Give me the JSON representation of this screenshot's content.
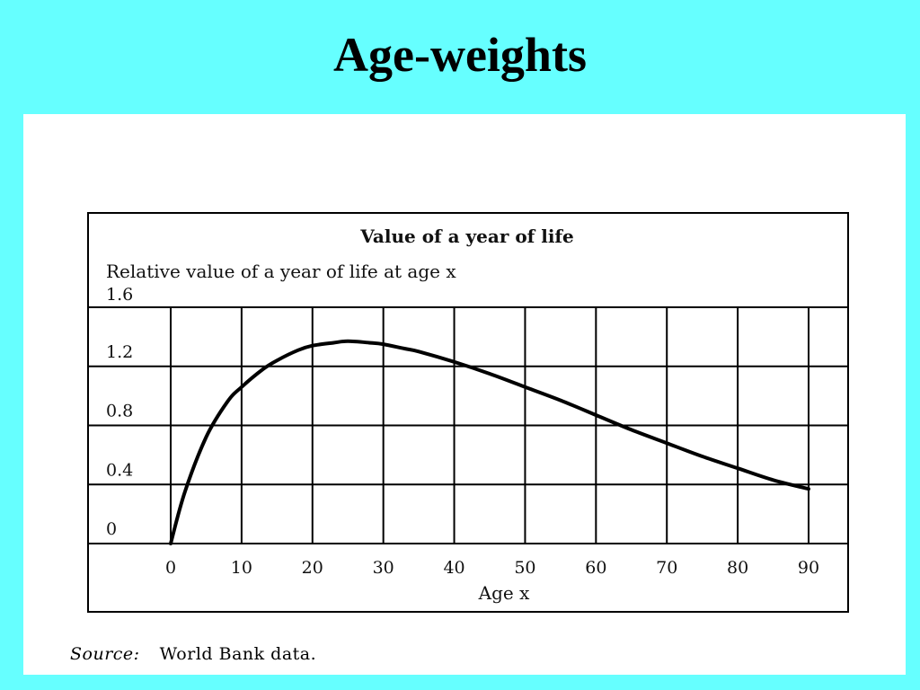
{
  "slide": {
    "title": "Age-weights",
    "source_label": "Source:",
    "source_text": "World Bank data."
  },
  "chart_data": {
    "type": "line",
    "title": "Value of a year of life",
    "subtitle": "Relative value of a year of  life at age x",
    "xlabel": "Age x",
    "ylabel": "",
    "xlim": [
      0,
      90
    ],
    "ylim": [
      0,
      1.6
    ],
    "x_ticks": [
      0,
      10,
      20,
      30,
      40,
      50,
      60,
      70,
      80,
      90
    ],
    "y_ticks": [
      0,
      0.4,
      0.8,
      1.2,
      1.6
    ],
    "x_tick_labels": [
      "0",
      "10",
      "20",
      "30",
      "40",
      "50",
      "60",
      "70",
      "80",
      "90"
    ],
    "y_tick_labels": [
      "0",
      "0.4",
      "0.8",
      "1.2",
      "1.6"
    ],
    "grid": true,
    "series": [
      {
        "x": [
          0,
          2,
          5,
          8,
          10,
          13,
          15,
          18,
          20,
          23,
          25,
          28,
          30,
          33,
          35,
          40,
          45,
          50,
          55,
          60,
          65,
          70,
          75,
          80,
          85,
          90
        ],
        "values": [
          0,
          0.35,
          0.72,
          0.96,
          1.06,
          1.18,
          1.24,
          1.31,
          1.34,
          1.36,
          1.37,
          1.36,
          1.35,
          1.32,
          1.3,
          1.23,
          1.15,
          1.06,
          0.97,
          0.87,
          0.77,
          0.68,
          0.59,
          0.51,
          0.43,
          0.37
        ]
      }
    ]
  }
}
